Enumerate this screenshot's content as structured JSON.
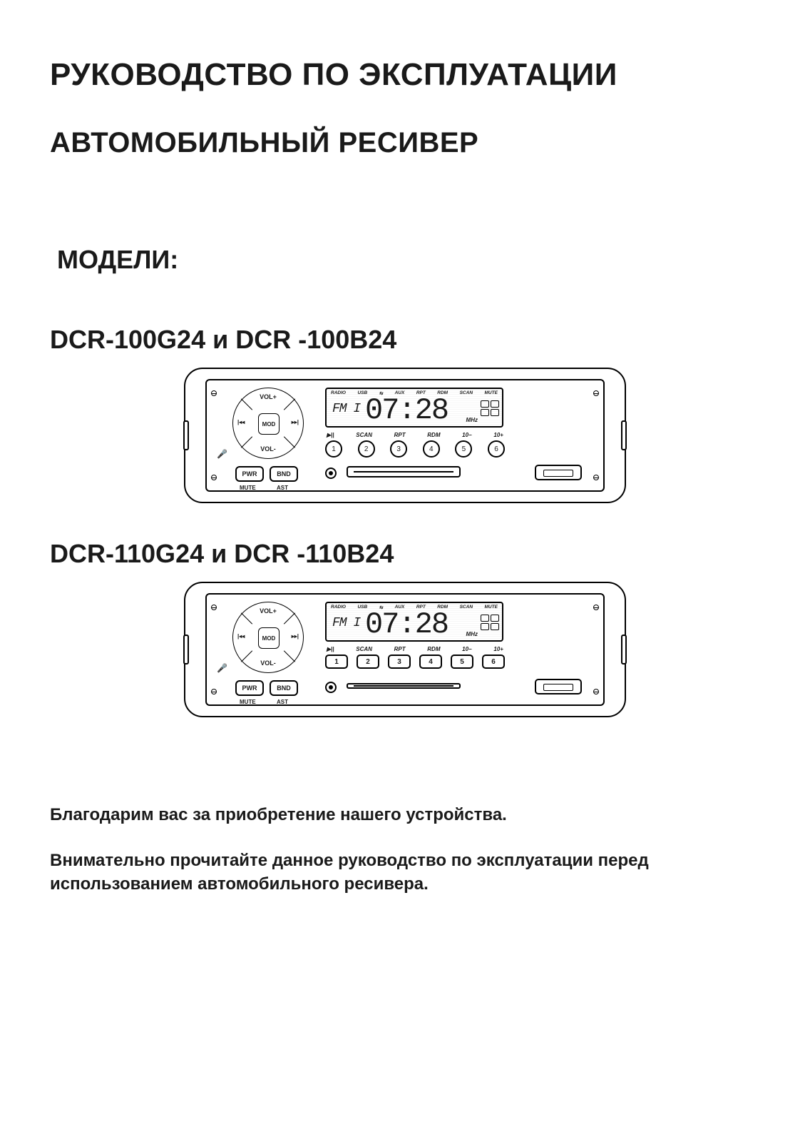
{
  "title_line1": "РУКОВОДСТВО ПО ЭКСПЛУАТАЦИИ",
  "title_line2": "АВТОМОБИЛЬНЫЙ РЕСИВЕР",
  "models_label": "МОДЕЛИ:",
  "model1_heading": "DCR-100G24 и DCR -100B24",
  "model2_heading": "DCR-110G24 и DCR -110B24",
  "footer1": "Благодарим вас за приобретение нашего устройства.",
  "footer2": "Внимательно прочитайте данное руководство по эксплуатации перед использованием автомобильного ресивера.",
  "device": {
    "nav": {
      "up": "VOL+",
      "down": "VOL-",
      "left": "|◂◂",
      "right": "▸▸|",
      "center": "MOD"
    },
    "buttons": {
      "pwr": "PWR",
      "bnd": "BND",
      "mute_sub": "MUTE",
      "ast_sub": "AST"
    },
    "lcd": {
      "top_labels": [
        "RADIO",
        "USB",
        "⇆",
        "AUX",
        "RPT",
        "RDM",
        "SCAN",
        "MUTE"
      ],
      "band": "FM I",
      "freq": "07:28",
      "mhz": "MHz"
    },
    "preset_top_labels": [
      "▶||",
      "SCAN",
      "RPT",
      "RDM",
      "10−",
      "10+"
    ],
    "presets": [
      "1",
      "2",
      "3",
      "4",
      "5",
      "6"
    ]
  },
  "colors": {
    "ink": "#000000",
    "paper": "#ffffff"
  }
}
